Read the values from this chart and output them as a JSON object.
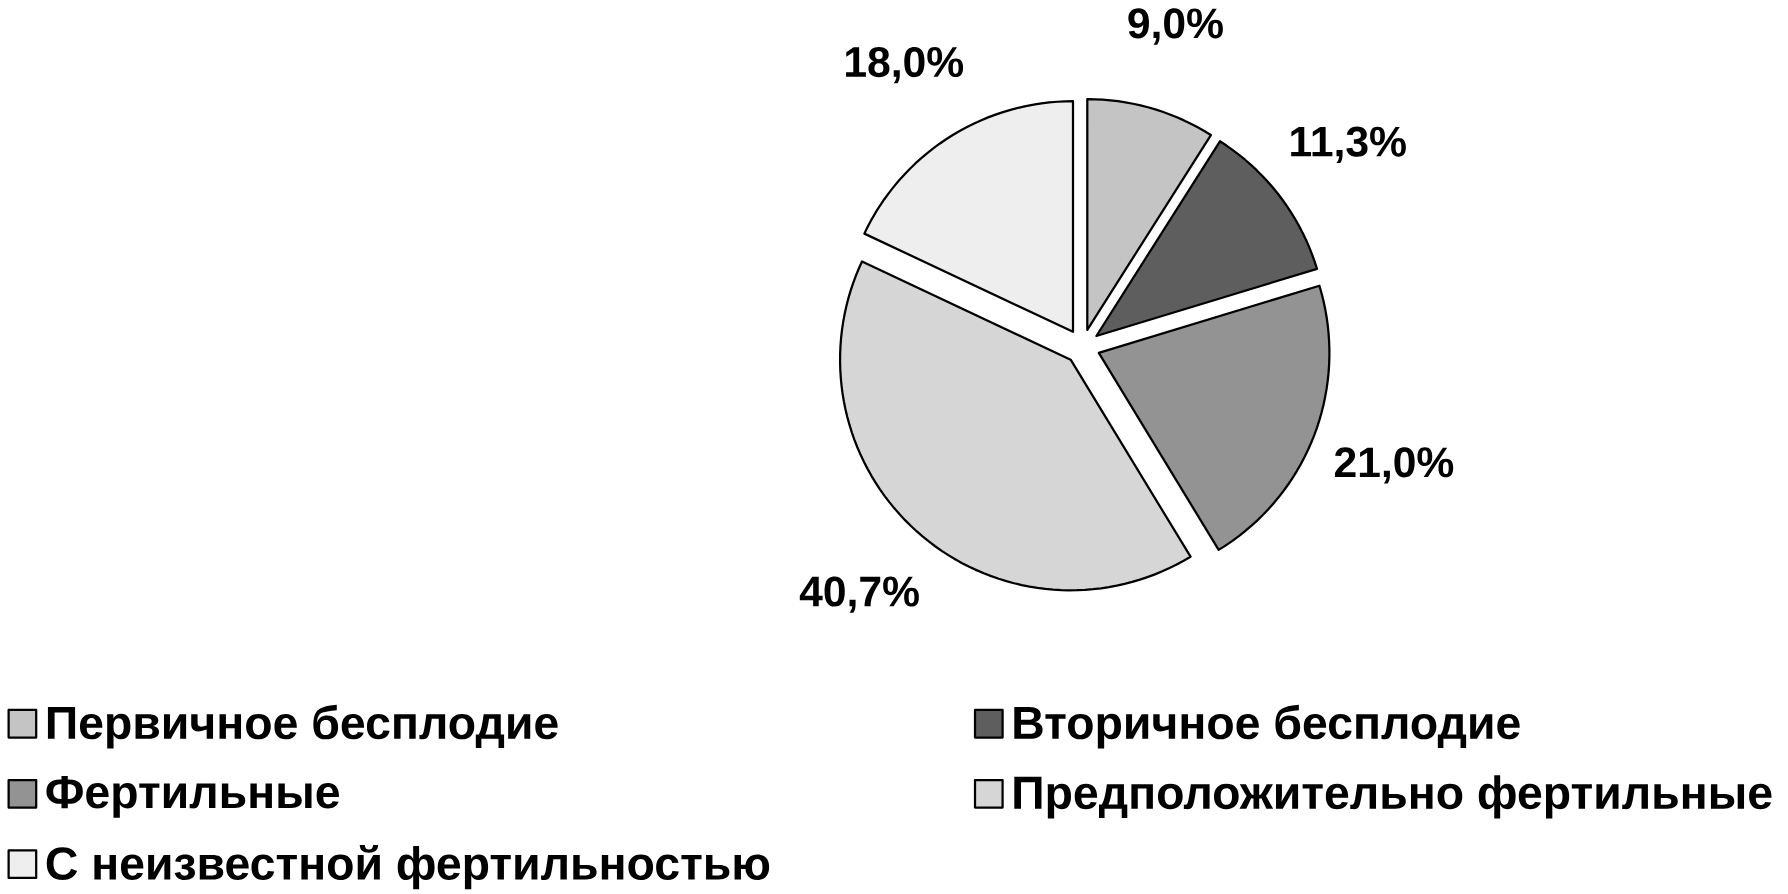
{
  "chart_data": {
    "type": "pie",
    "categories": [
      "Первичное бесплодие",
      "Вторичное бесплодие",
      "Фертильные",
      "Предположительно фертильные",
      "С неизвестной фертильностью"
    ],
    "values": [
      9.0,
      11.3,
      21.0,
      40.7,
      18.0
    ],
    "colors": [
      "#c4c4c4",
      "#5e5e5e",
      "#939393",
      "#d6d6d6",
      "#eeeeee"
    ],
    "value_labels": [
      "9,0%",
      "11,3%",
      "21,0%",
      "40,7%",
      "18,0%"
    ],
    "legend": "bottom"
  }
}
